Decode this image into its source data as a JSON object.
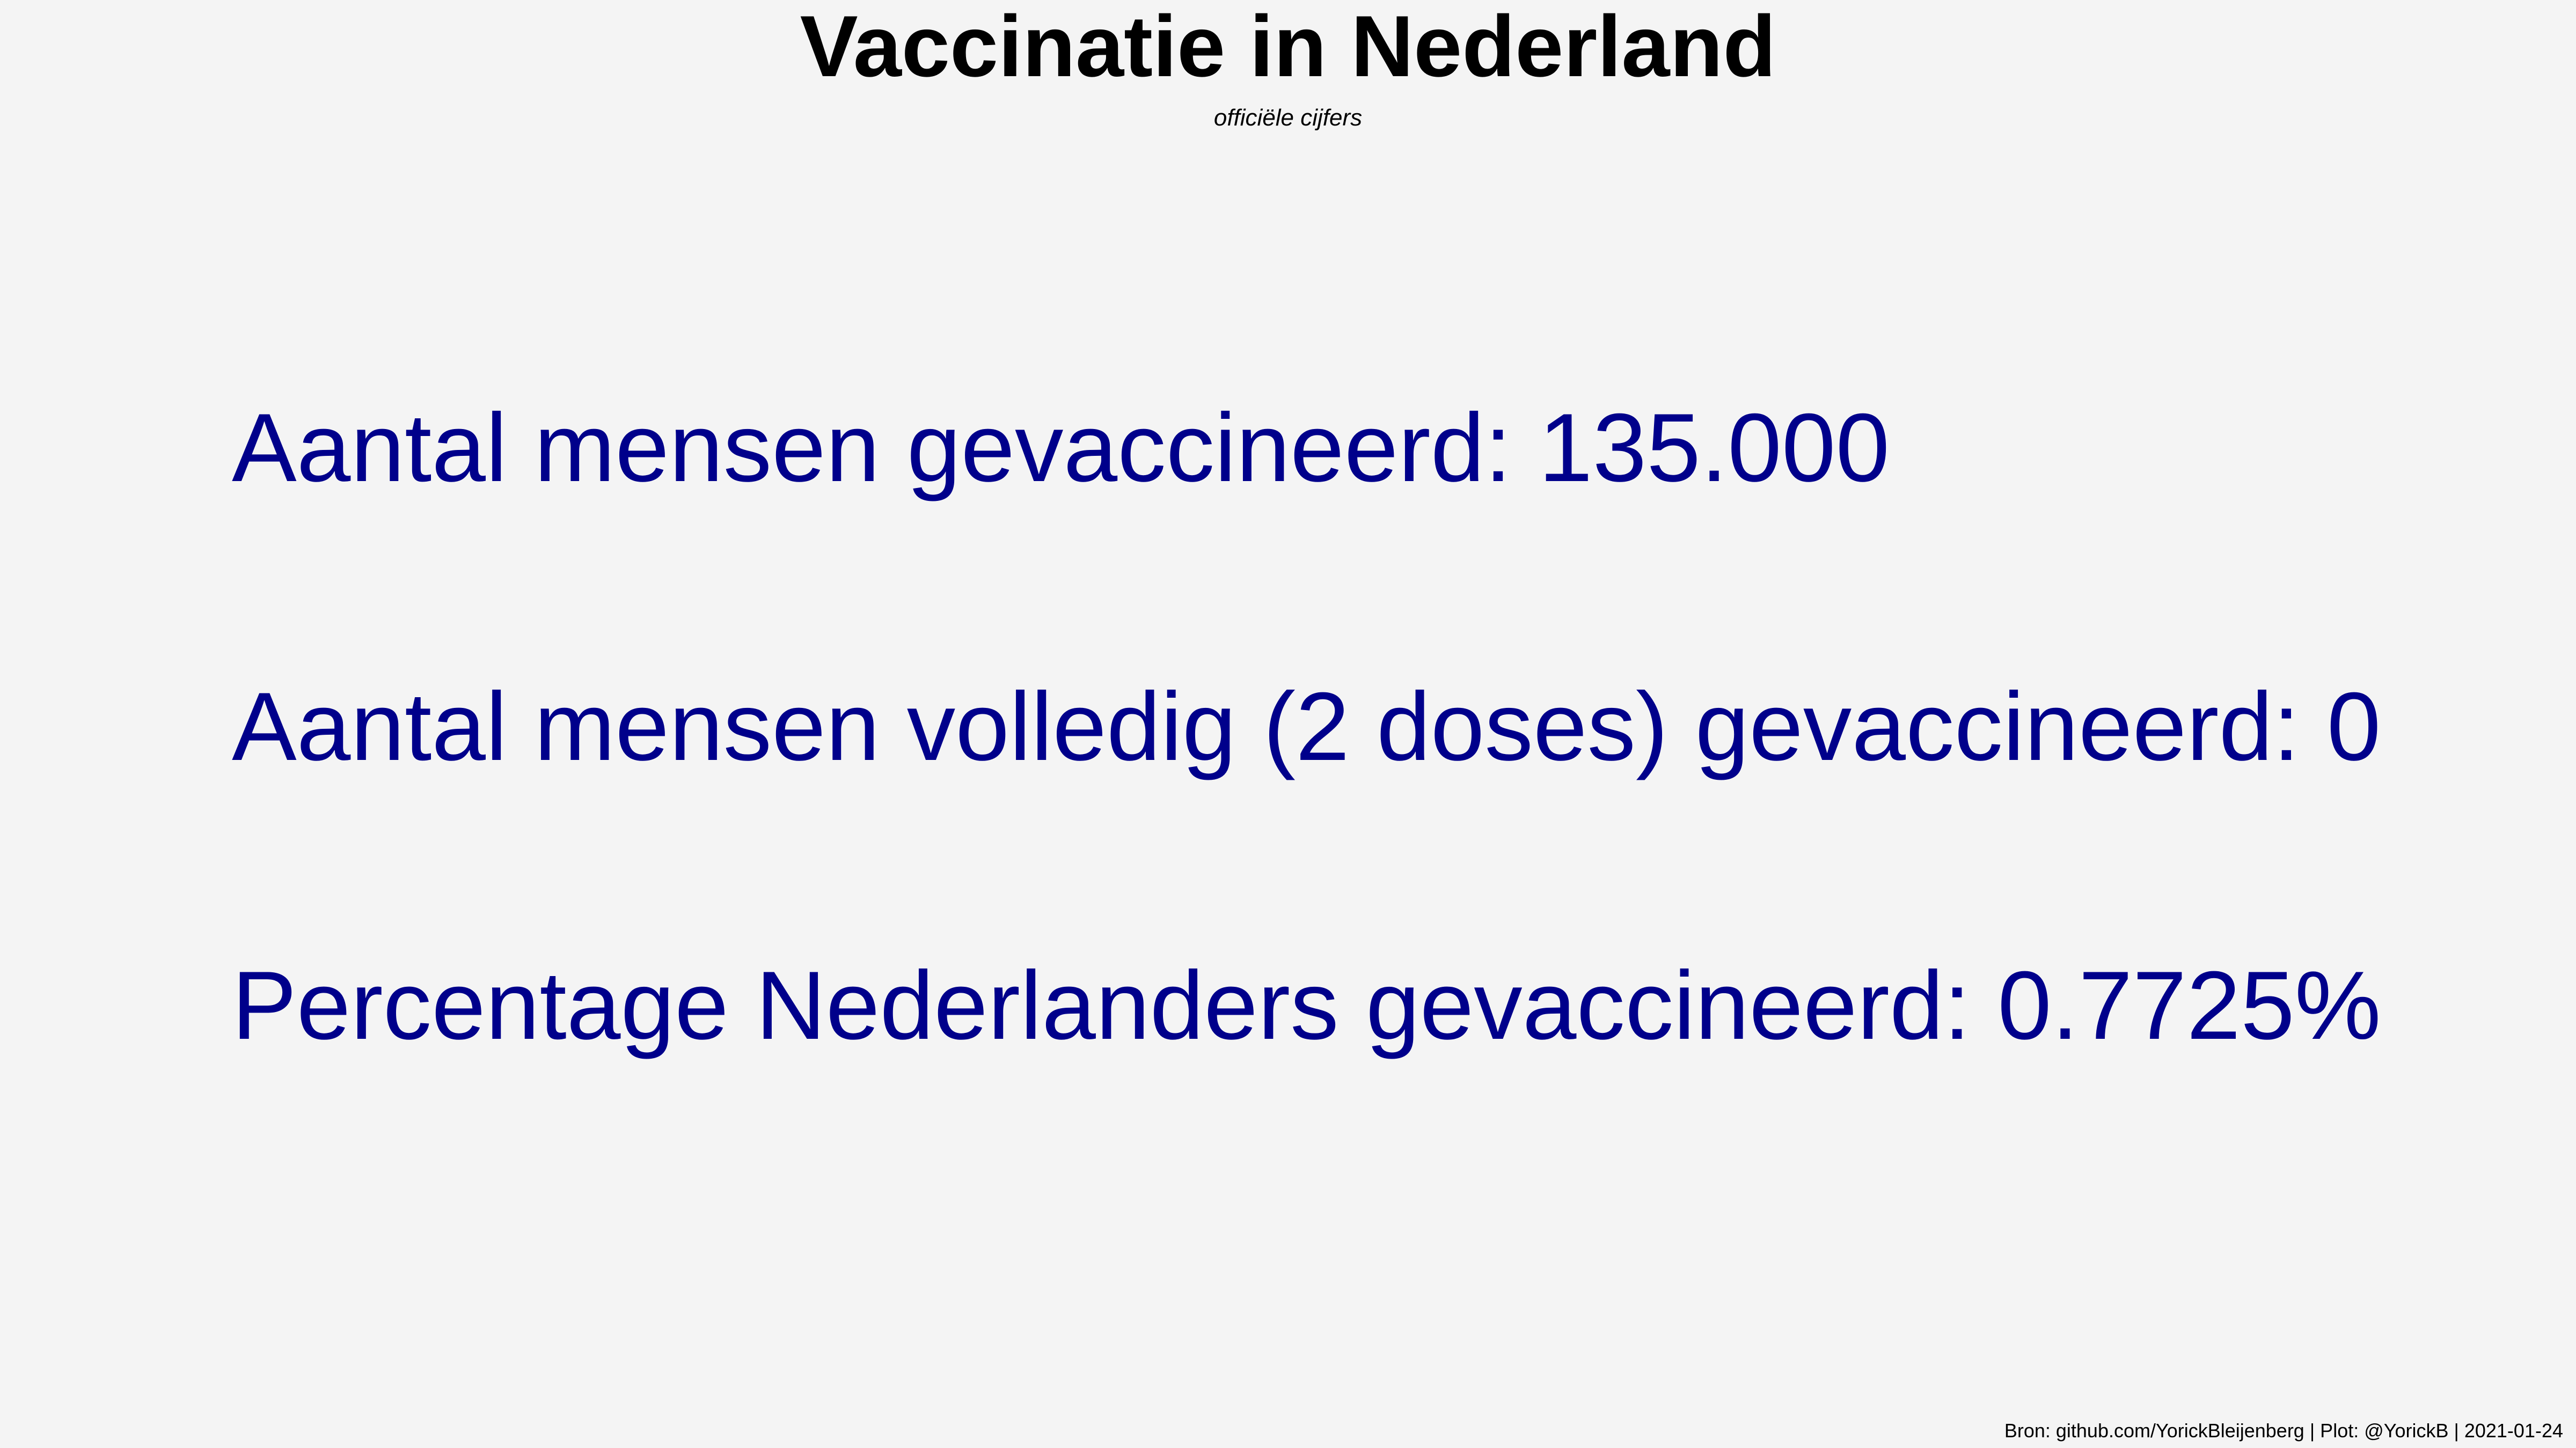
{
  "chart_data": {
    "type": "table",
    "title": "Vaccinatie in Nederland",
    "subtitle": "officiële cijfers",
    "rows": [
      {
        "label": "Aantal mensen gevaccineerd: ",
        "value": "135.000"
      },
      {
        "label": "Aantal mensen volledig (2 doses) gevaccineerd: ",
        "value": "0"
      },
      {
        "label": "Percentage Nederlanders gevaccineerd: ",
        "value": "0.7725%"
      }
    ],
    "caption": "Bron: github.com/YorickBleijenberg | Plot: @YorickB |  2021-01-24"
  },
  "colors": {
    "background": "#f4f4f4",
    "title": "#000000",
    "stat_text": "#00008b"
  }
}
